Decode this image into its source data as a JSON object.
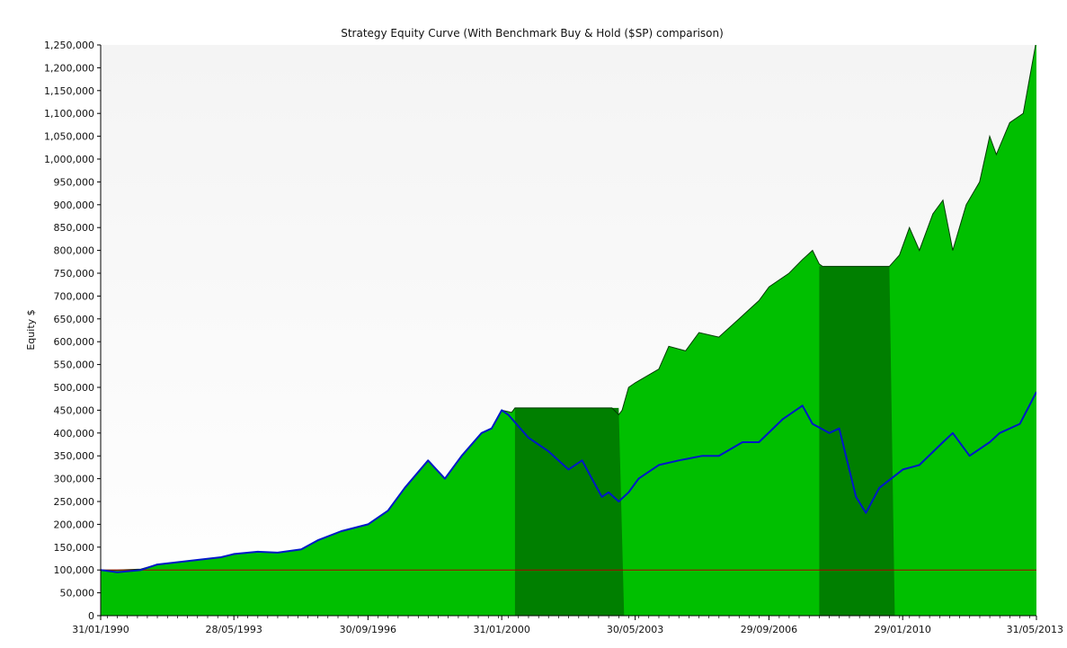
{
  "chart_data": {
    "type": "area",
    "title": "Strategy Equity Curve (With Benchmark Buy & Hold ($SP) comparison)",
    "xlabel": "",
    "ylabel": "Equity $",
    "ylim": [
      0,
      1250000
    ],
    "xlim": [
      "31/01/1990",
      "31/05/2013"
    ],
    "grid": false,
    "legend": "none",
    "y_ticks": [
      "0",
      "50,000",
      "100,000",
      "150,000",
      "200,000",
      "250,000",
      "300,000",
      "350,000",
      "400,000",
      "450,000",
      "500,000",
      "550,000",
      "600,000",
      "650,000",
      "700,000",
      "750,000",
      "800,000",
      "850,000",
      "900,000",
      "950,000",
      "1,000,000",
      "1,050,000",
      "1,100,000",
      "1,150,000",
      "1,200,000",
      "1,250,000"
    ],
    "x_ticks": [
      "31/01/1990",
      "28/05/1993",
      "30/09/1996",
      "31/01/2000",
      "30/05/2003",
      "29/09/2006",
      "29/01/2010",
      "31/05/2013"
    ],
    "colors": {
      "strategy_fill": "#00bf00",
      "cash_period_fill": "#007f00",
      "strategy_line": "#003a00",
      "benchmark_line": "#0018c8",
      "initial_capital_line": "#b00000",
      "background_top": "#f4f4f4",
      "background_bottom": "#ffffff"
    },
    "series": [
      {
        "role": "strategy",
        "x": [
          "1990-01-31",
          "1990-06-30",
          "1991-01-31",
          "1991-06-30",
          "1992-01-31",
          "1992-06-30",
          "1993-01-31",
          "1993-05-31",
          "1993-12-31",
          "1994-06-30",
          "1995-01-31",
          "1995-06-30",
          "1996-01-31",
          "1996-09-30",
          "1997-03-31",
          "1997-08-31",
          "1998-03-31",
          "1998-08-31",
          "1999-01-31",
          "1999-07-31",
          "1999-10-31",
          "2000-01-31",
          "2000-04-30",
          "2000-05-31",
          "2002-10-31",
          "2002-12-31",
          "2003-01-31",
          "2003-03-31",
          "2003-05-31",
          "2003-12-31",
          "2004-03-31",
          "2004-08-31",
          "2004-12-31",
          "2005-06-30",
          "2005-12-31",
          "2006-03-31",
          "2006-06-30",
          "2006-09-30",
          "2007-03-31",
          "2007-07-31",
          "2007-10-31",
          "2007-12-31",
          "2008-01-31",
          "2009-09-30",
          "2009-12-31",
          "2010-03-31",
          "2010-06-30",
          "2010-10-31",
          "2011-01-31",
          "2011-04-30",
          "2011-08-31",
          "2011-12-31",
          "2012-03-31",
          "2012-05-31",
          "2012-09-30",
          "2013-01-31",
          "2013-05-31"
        ],
        "y": [
          100000,
          100000,
          102000,
          112000,
          118000,
          122000,
          128000,
          135000,
          140000,
          138000,
          145000,
          165000,
          185000,
          200000,
          230000,
          280000,
          340000,
          300000,
          350000,
          400000,
          410000,
          450000,
          445000,
          455000,
          455000,
          440000,
          450000,
          500000,
          510000,
          540000,
          590000,
          580000,
          620000,
          610000,
          650000,
          670000,
          690000,
          720000,
          750000,
          780000,
          800000,
          770000,
          765000,
          765000,
          790000,
          850000,
          800000,
          880000,
          910000,
          800000,
          900000,
          950000,
          1050000,
          1010000,
          1080000,
          1100000,
          1260000
        ]
      },
      {
        "role": "benchmark",
        "x": [
          "1990-01-31",
          "1990-06-30",
          "1991-01-31",
          "1991-06-30",
          "1992-01-31",
          "1992-06-30",
          "1993-01-31",
          "1993-05-31",
          "1993-12-31",
          "1994-06-30",
          "1995-01-31",
          "1995-06-30",
          "1996-01-31",
          "1996-09-30",
          "1997-03-31",
          "1997-08-31",
          "1998-03-31",
          "1998-08-31",
          "1999-01-31",
          "1999-07-31",
          "1999-10-31",
          "2000-01-31",
          "2000-03-31",
          "2000-09-30",
          "2001-03-31",
          "2001-09-30",
          "2002-01-31",
          "2002-07-31",
          "2002-09-30",
          "2002-12-31",
          "2003-03-31",
          "2003-06-30",
          "2003-12-31",
          "2004-06-30",
          "2005-01-31",
          "2005-06-30",
          "2006-01-31",
          "2006-06-30",
          "2007-01-31",
          "2007-07-31",
          "2007-10-31",
          "2008-03-31",
          "2008-06-30",
          "2008-11-30",
          "2009-02-28",
          "2009-06-30",
          "2010-01-31",
          "2010-06-30",
          "2011-01-31",
          "2011-04-30",
          "2011-09-30",
          "2012-03-31",
          "2012-06-30",
          "2012-12-31",
          "2013-05-31"
        ],
        "y": [
          100000,
          95000,
          100000,
          112000,
          118000,
          122000,
          128000,
          135000,
          140000,
          138000,
          145000,
          165000,
          185000,
          200000,
          230000,
          280000,
          340000,
          300000,
          350000,
          400000,
          410000,
          450000,
          440000,
          390000,
          360000,
          320000,
          340000,
          260000,
          270000,
          250000,
          270000,
          300000,
          330000,
          340000,
          350000,
          350000,
          380000,
          380000,
          430000,
          460000,
          420000,
          400000,
          410000,
          260000,
          225000,
          280000,
          320000,
          330000,
          380000,
          400000,
          350000,
          380000,
          400000,
          420000,
          490000
        ]
      }
    ],
    "cash_periods": [
      {
        "from": "2000-05-31",
        "to": "2002-12-31",
        "level": 455000
      },
      {
        "from": "2007-12-31",
        "to": "2009-09-30",
        "level": 765000
      }
    ],
    "initial_capital": 100000
  }
}
